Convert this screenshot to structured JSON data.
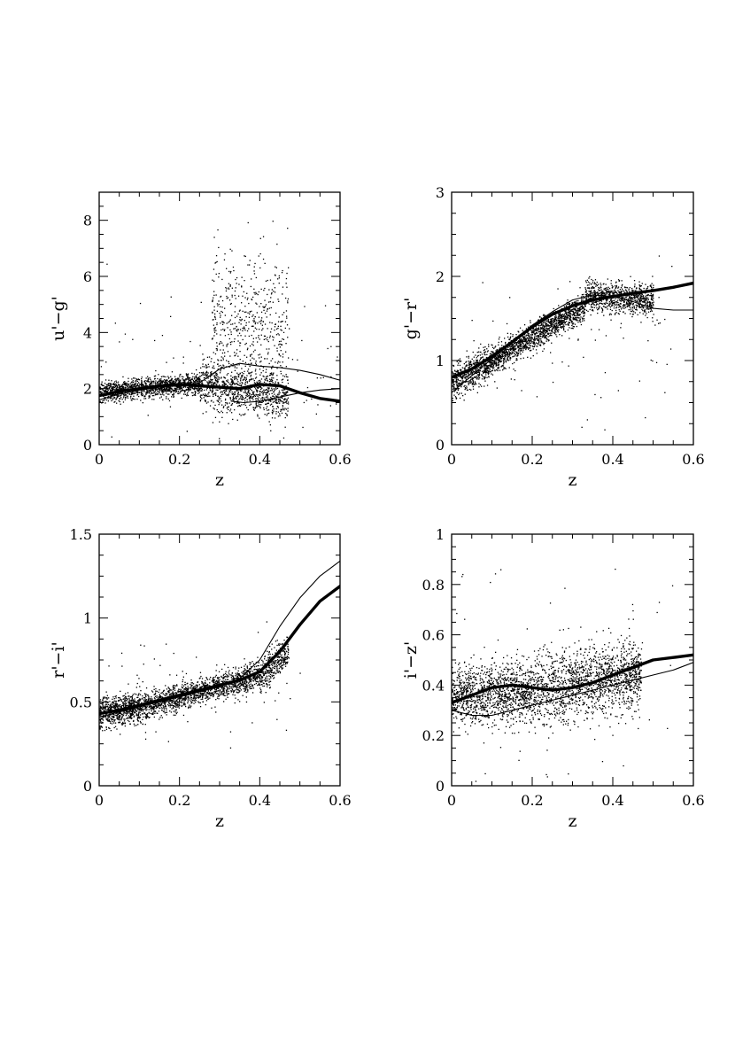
{
  "chart_data": [
    {
      "type": "scatter",
      "xlabel": "z",
      "ylabel": "u'−g'",
      "xlim": [
        0,
        0.6
      ],
      "ylim": [
        0,
        9
      ],
      "x_ticks": [
        "0",
        "0.2",
        "0.4",
        "0.6"
      ],
      "y_ticks": [
        "0",
        "2",
        "4",
        "6",
        "8"
      ],
      "grid": false,
      "legend": "none",
      "scatter_clouds": [
        {
          "x_range": [
            0.0,
            0.25
          ],
          "center": [
            1.9,
            2.2
          ],
          "spread": 0.18,
          "count": 1300
        },
        {
          "x_range": [
            0.25,
            0.47
          ],
          "center": [
            2.2,
            1.7
          ],
          "spread": 0.4,
          "count": 900
        },
        {
          "x_range": [
            0.28,
            0.47
          ],
          "center": [
            4.3,
            4.3
          ],
          "spread": 1.3,
          "count": 550
        },
        {
          "x_range": [
            0.0,
            0.6
          ],
          "center": [
            2.3,
            2.3
          ],
          "spread": 1.6,
          "count": 100
        }
      ],
      "series": [
        {
          "style": "thick",
          "x": [
            0,
            0.05,
            0.1,
            0.15,
            0.2,
            0.25,
            0.3,
            0.35,
            0.4,
            0.45,
            0.5,
            0.55,
            0.6
          ],
          "y": [
            1.75,
            1.9,
            2.0,
            2.1,
            2.15,
            2.1,
            2.05,
            2.0,
            2.15,
            2.1,
            1.85,
            1.65,
            1.55
          ]
        },
        {
          "style": "thin",
          "x": [
            0,
            0.05,
            0.1,
            0.15,
            0.2,
            0.25,
            0.3,
            0.35,
            0.4,
            0.45,
            0.5,
            0.55,
            0.6
          ],
          "y": [
            1.6,
            1.8,
            1.95,
            2.05,
            2.1,
            2.2,
            2.7,
            2.9,
            2.8,
            2.75,
            2.65,
            2.5,
            2.3
          ]
        },
        {
          "style": "thin",
          "x": [
            0.33,
            0.36,
            0.4,
            0.45,
            0.5,
            0.55,
            0.6
          ],
          "y": [
            1.55,
            1.5,
            1.55,
            1.7,
            1.85,
            1.95,
            2.0
          ]
        }
      ]
    },
    {
      "type": "scatter",
      "xlabel": "z",
      "ylabel": "g'−r'",
      "xlim": [
        0,
        0.6
      ],
      "ylim": [
        0,
        3
      ],
      "x_ticks": [
        "0",
        "0.2",
        "0.4",
        "0.6"
      ],
      "y_ticks": [
        "0",
        "1",
        "2",
        "3"
      ],
      "grid": false,
      "legend": "none",
      "scatter_clouds": [
        {
          "x_range": [
            0.0,
            0.1
          ],
          "center": [
            0.75,
            1.0
          ],
          "spread": 0.1,
          "count": 600
        },
        {
          "x_range": [
            0.1,
            0.33
          ],
          "center": [
            1.0,
            1.65
          ],
          "spread": 0.08,
          "count": 1400
        },
        {
          "x_range": [
            0.33,
            0.5
          ],
          "center": [
            1.78,
            1.72
          ],
          "spread": 0.09,
          "count": 900
        },
        {
          "x_range": [
            0.0,
            0.55
          ],
          "center": [
            1.3,
            1.3
          ],
          "spread": 0.5,
          "count": 80
        }
      ],
      "series": [
        {
          "style": "thick",
          "x": [
            0,
            0.05,
            0.1,
            0.15,
            0.2,
            0.25,
            0.3,
            0.35,
            0.4,
            0.45,
            0.5,
            0.55,
            0.6
          ],
          "y": [
            0.8,
            0.9,
            1.05,
            1.22,
            1.4,
            1.55,
            1.65,
            1.72,
            1.76,
            1.8,
            1.83,
            1.87,
            1.92
          ]
        },
        {
          "style": "thin",
          "x": [
            0,
            0.05,
            0.1,
            0.15,
            0.2,
            0.25,
            0.3,
            0.35,
            0.4,
            0.45,
            0.5,
            0.55,
            0.6
          ],
          "y": [
            0.62,
            0.82,
            1.02,
            1.22,
            1.42,
            1.58,
            1.72,
            1.78,
            1.76,
            1.7,
            1.62,
            1.6,
            1.6
          ]
        }
      ]
    },
    {
      "type": "scatter",
      "xlabel": "z",
      "ylabel": "r'−i'",
      "xlim": [
        0,
        0.6
      ],
      "ylim": [
        0,
        1.5
      ],
      "x_ticks": [
        "0",
        "0.2",
        "0.4",
        "0.6"
      ],
      "y_ticks": [
        "0",
        "0.5",
        "1",
        "1.5"
      ],
      "grid": false,
      "legend": "none",
      "scatter_clouds": [
        {
          "x_range": [
            0.0,
            0.1
          ],
          "center": [
            0.44,
            0.47
          ],
          "spread": 0.045,
          "count": 700
        },
        {
          "x_range": [
            0.1,
            0.4
          ],
          "center": [
            0.47,
            0.66
          ],
          "spread": 0.04,
          "count": 1500
        },
        {
          "x_range": [
            0.4,
            0.47
          ],
          "center": [
            0.66,
            0.8
          ],
          "spread": 0.05,
          "count": 350
        },
        {
          "x_range": [
            0.0,
            0.5
          ],
          "center": [
            0.55,
            0.55
          ],
          "spread": 0.2,
          "count": 70
        }
      ],
      "series": [
        {
          "style": "thick",
          "x": [
            0,
            0.05,
            0.1,
            0.15,
            0.2,
            0.25,
            0.3,
            0.35,
            0.4,
            0.45,
            0.5,
            0.55,
            0.6
          ],
          "y": [
            0.43,
            0.45,
            0.48,
            0.51,
            0.54,
            0.57,
            0.6,
            0.63,
            0.68,
            0.8,
            0.96,
            1.1,
            1.19
          ]
        },
        {
          "style": "thin",
          "x": [
            0,
            0.05,
            0.1,
            0.15,
            0.2,
            0.25,
            0.3,
            0.35,
            0.4,
            0.45,
            0.5,
            0.55,
            0.6
          ],
          "y": [
            0.41,
            0.44,
            0.47,
            0.5,
            0.53,
            0.56,
            0.59,
            0.64,
            0.75,
            0.95,
            1.12,
            1.25,
            1.34
          ]
        }
      ]
    },
    {
      "type": "scatter",
      "xlabel": "z",
      "ylabel": "i'−z'",
      "xlim": [
        0,
        0.6
      ],
      "ylim": [
        0,
        1
      ],
      "x_ticks": [
        "0",
        "0.2",
        "0.4",
        "0.6"
      ],
      "y_ticks": [
        "0",
        "0.2",
        "0.4",
        "0.6",
        "0.8",
        "1"
      ],
      "grid": false,
      "legend": "none",
      "scatter_clouds": [
        {
          "x_range": [
            0.0,
            0.2
          ],
          "center": [
            0.36,
            0.38
          ],
          "spread": 0.06,
          "count": 1200
        },
        {
          "x_range": [
            0.2,
            0.47
          ],
          "center": [
            0.38,
            0.45
          ],
          "spread": 0.07,
          "count": 1500
        },
        {
          "x_range": [
            0.0,
            0.55
          ],
          "center": [
            0.4,
            0.4
          ],
          "spread": 0.2,
          "count": 90
        }
      ],
      "series": [
        {
          "style": "thick",
          "x": [
            0,
            0.05,
            0.1,
            0.15,
            0.2,
            0.25,
            0.3,
            0.35,
            0.4,
            0.45,
            0.5,
            0.55,
            0.6
          ],
          "y": [
            0.33,
            0.36,
            0.39,
            0.4,
            0.39,
            0.38,
            0.39,
            0.41,
            0.44,
            0.47,
            0.5,
            0.51,
            0.52
          ]
        },
        {
          "style": "thin",
          "x": [
            0,
            0.05,
            0.1,
            0.15,
            0.2,
            0.25,
            0.3,
            0.35,
            0.4,
            0.45,
            0.5,
            0.55,
            0.6
          ],
          "y": [
            0.3,
            0.28,
            0.28,
            0.3,
            0.32,
            0.34,
            0.36,
            0.38,
            0.4,
            0.42,
            0.44,
            0.46,
            0.49
          ]
        }
      ]
    }
  ]
}
